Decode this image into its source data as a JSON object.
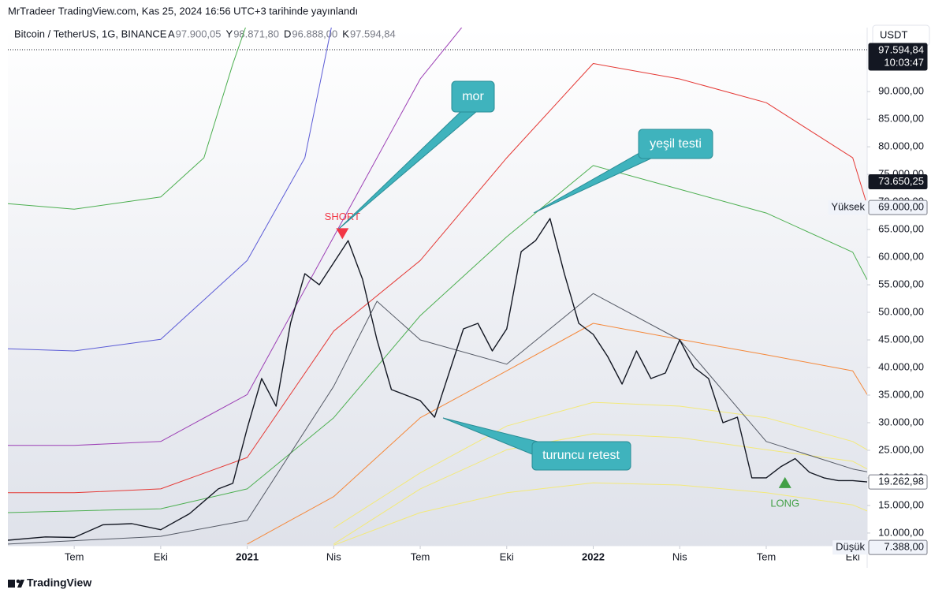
{
  "header": {
    "publisher": "MrTradeer TradingView.com, Kas 25, 2024 16:56 UTC+3 tarihinde yayınlandı",
    "currency": "USDT",
    "brand": "TradingView"
  },
  "chart_data": {
    "type": "line",
    "title": "Bitcoin / TetherUS, 1G, BINANCE",
    "ohlc": [
      {
        "key": "A",
        "value": "97.900,05"
      },
      {
        "key": "Y",
        "value": "98.871,80"
      },
      {
        "key": "D",
        "value": "96.888,00"
      },
      {
        "key": "K",
        "value": "97.594,84"
      }
    ],
    "xlim": [
      3.7,
      33.5
    ],
    "xticks": [
      {
        "value": 6,
        "label": "Tem"
      },
      {
        "value": 9,
        "label": "Eki"
      },
      {
        "value": 12,
        "label": "2021"
      },
      {
        "value": 15,
        "label": "Nis"
      },
      {
        "value": 18,
        "label": "Tem"
      },
      {
        "value": 21,
        "label": "Eki"
      },
      {
        "value": 24,
        "label": "2022"
      },
      {
        "value": 27,
        "label": "Nis"
      },
      {
        "value": 30,
        "label": "Tem"
      },
      {
        "value": 33,
        "label": "Eki"
      }
    ],
    "ylim": [
      7700,
      101600
    ],
    "yticks": [
      {
        "value": 10000,
        "label": "10.000,00"
      },
      {
        "value": 15000,
        "label": "15.000,00"
      },
      {
        "value": 20000,
        "label": "20.000,00"
      },
      {
        "value": 25000,
        "label": "25.000,00"
      },
      {
        "value": 30000,
        "label": "30.000,00"
      },
      {
        "value": 35000,
        "label": "35.000,00"
      },
      {
        "value": 40000,
        "label": "40.000,00"
      },
      {
        "value": 45000,
        "label": "45.000,00"
      },
      {
        "value": 50000,
        "label": "50.000,00"
      },
      {
        "value": 55000,
        "label": "55.000,00"
      },
      {
        "value": 60000,
        "label": "60.000,00"
      },
      {
        "value": 65000,
        "label": "65.000,00"
      },
      {
        "value": 70000,
        "label": "70.000,00"
      },
      {
        "value": 75000,
        "label": "75.000,00"
      },
      {
        "value": 80000,
        "label": "80.000,00"
      },
      {
        "value": 85000,
        "label": "85.000,00"
      },
      {
        "value": 90000,
        "label": "90.000,00"
      }
    ],
    "grid": false,
    "series": [
      {
        "color": "#131722",
        "width": 1.4,
        "x": [
          3.7,
          5,
          6,
          7,
          8,
          9,
          10,
          11,
          11.5,
          12,
          12.5,
          13,
          13.5,
          14,
          14.5,
          15,
          15.5,
          16,
          16.5,
          17,
          17.5,
          18,
          18.5,
          19,
          19.5,
          20,
          20.5,
          21,
          21.5,
          22,
          22.5,
          23,
          23.5,
          24,
          24.5,
          25,
          25.5,
          26,
          26.5,
          27,
          27.5,
          28,
          28.5,
          29,
          29.5,
          30,
          30.5,
          31,
          31.5,
          32,
          32.5,
          33,
          33.5
        ],
        "values": [
          8700,
          9300,
          9200,
          11500,
          11700,
          10600,
          13500,
          18000,
          19000,
          29000,
          38000,
          33000,
          48000,
          57000,
          55000,
          59000,
          63000,
          56000,
          45000,
          36000,
          35000,
          34000,
          31000,
          39000,
          47000,
          48000,
          43000,
          47000,
          61000,
          63000,
          67000,
          57000,
          48000,
          46000,
          42000,
          37000,
          43000,
          38000,
          39000,
          45000,
          40000,
          38000,
          30000,
          31000,
          20000,
          20000,
          22000,
          23500,
          21000,
          20000,
          19500,
          19500,
          19263
        ]
      },
      {
        "color": "#555a66",
        "width": 1,
        "x": [
          3.7,
          9,
          12,
          15,
          16.5,
          18,
          21,
          24,
          27,
          30,
          33,
          33.5
        ],
        "values": [
          8000,
          9400,
          12300,
          36600,
          52000,
          45000,
          40600,
          53400,
          45000,
          26600,
          21600,
          21100
        ]
      },
      {
        "color": "#4caf50",
        "width": 1,
        "x": [
          3.7,
          6,
          9,
          10.5,
          11.5,
          12.5
        ],
        "values": [
          69700,
          68700,
          70900,
          78000,
          95000,
          110000
        ]
      },
      {
        "color": "#4caf50",
        "width": 1,
        "x": [
          3.7,
          6,
          9,
          12,
          15,
          18,
          21,
          24,
          27,
          30,
          33,
          33.5
        ],
        "values": [
          13700,
          14000,
          14400,
          18000,
          30900,
          49400,
          63700,
          76600,
          72300,
          68000,
          60900,
          55900
        ]
      },
      {
        "color": "#5b5bd6",
        "width": 1,
        "x": [
          3.7,
          6,
          9,
          12,
          14,
          15
        ],
        "values": [
          43400,
          43000,
          45100,
          59400,
          78000,
          103700
        ]
      },
      {
        "color": "#9c3fb5",
        "width": 1,
        "x": [
          3.7,
          6,
          9,
          12,
          15,
          18,
          19.5
        ],
        "values": [
          25900,
          25900,
          26600,
          35100,
          63700,
          92300,
          102000
        ]
      },
      {
        "color": "#e53935",
        "width": 1,
        "x": [
          3.7,
          6,
          9,
          12,
          15,
          18,
          21,
          24,
          27,
          30,
          33,
          33.5
        ],
        "values": [
          17300,
          17300,
          18000,
          23700,
          46600,
          59400,
          78000,
          95100,
          92300,
          88000,
          78000,
          69400
        ]
      },
      {
        "color": "#f5883a",
        "width": 1,
        "x": [
          12,
          15,
          18,
          21,
          24,
          27,
          30,
          33,
          33.5
        ],
        "values": [
          8000,
          16600,
          30900,
          39400,
          48000,
          45100,
          42300,
          39400,
          35100
        ]
      },
      {
        "color": "#f3e97a",
        "width": 1,
        "x": [
          15,
          18,
          21,
          24,
          27,
          30,
          33,
          33.5
        ],
        "values": [
          10900,
          20900,
          29400,
          33700,
          33000,
          30900,
          26600,
          25100
        ]
      },
      {
        "color": "#f3e97a",
        "width": 1,
        "x": [
          15,
          18,
          21,
          24,
          27,
          30,
          33,
          33.5
        ],
        "values": [
          8000,
          18000,
          25100,
          28000,
          27300,
          25100,
          23000,
          21600
        ]
      },
      {
        "color": "#f3e97a",
        "width": 1,
        "x": [
          15,
          18,
          21,
          24,
          27,
          30,
          33,
          33.5
        ],
        "values": [
          7800,
          13700,
          17300,
          19100,
          18700,
          17300,
          15100,
          14000
        ]
      }
    ],
    "signals": [
      {
        "label": "SHORT",
        "x": 15.3,
        "value": 64100,
        "color": "#f23645",
        "dir": "down"
      },
      {
        "label": "LONG",
        "x": 30.65,
        "value": 19300,
        "color": "#43a047",
        "dir": "up"
      }
    ],
    "price_labels": [
      {
        "value": 97594.84,
        "label": "97.594,84",
        "countdown": "10:03:47",
        "style": "dark"
      },
      {
        "value": 73650.25,
        "label": "73.650,25",
        "style": "dark"
      },
      {
        "value": 69000,
        "label": "69.000,00",
        "caption": "Yüksek",
        "style": "light"
      },
      {
        "value": 19262.98,
        "label": "19.262,98",
        "style": "outline"
      },
      {
        "value": 7388,
        "label": "7.388,00",
        "caption": "Düşük",
        "style": "light"
      }
    ],
    "annotations": [
      "mor",
      "yeşil testi",
      "turuncu retest"
    ]
  }
}
